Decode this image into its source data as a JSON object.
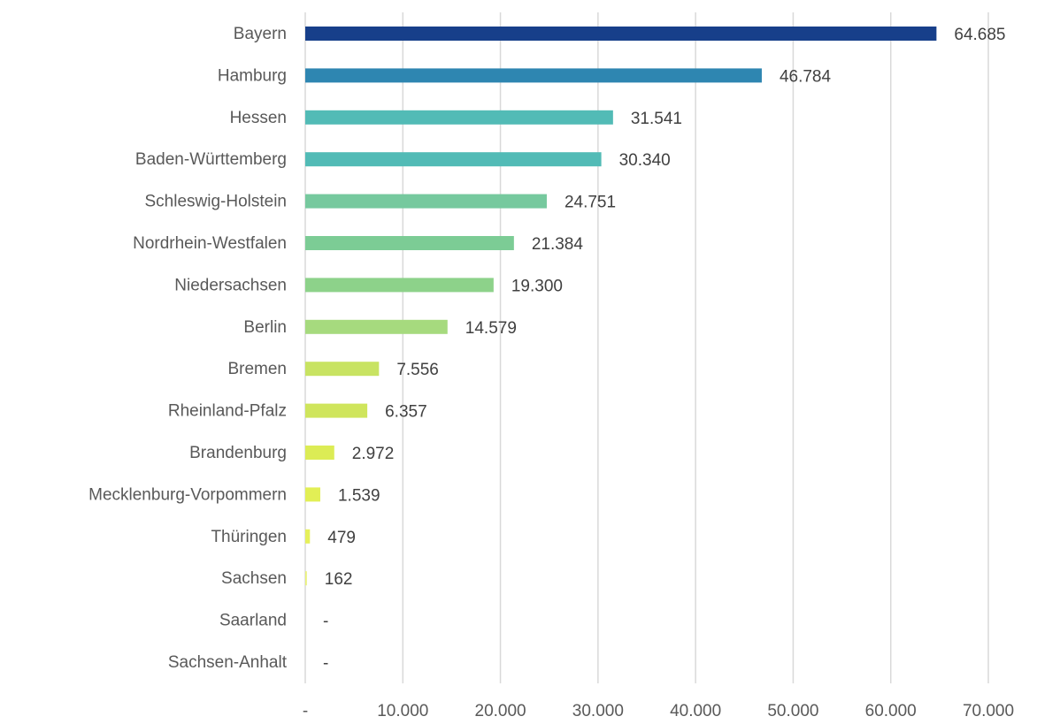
{
  "chart_data": {
    "type": "bar",
    "orientation": "horizontal",
    "title": "",
    "xlabel": "",
    "ylabel": "",
    "xlim": [
      0,
      70000
    ],
    "grid": true,
    "categories": [
      "Bayern",
      "Hamburg",
      "Hessen",
      "Baden-Württemberg",
      "Schleswig-Holstein",
      "Nordrhein-Westfalen",
      "Niedersachsen",
      "Berlin",
      "Bremen",
      "Rheinland-Pfalz",
      "Brandenburg",
      "Mecklenburg-Vorpommern",
      "Thüringen",
      "Sachsen",
      "Saarland",
      "Sachsen-Anhalt"
    ],
    "values": [
      64685,
      46784,
      31541,
      30340,
      24751,
      21384,
      19300,
      14579,
      7556,
      6357,
      2972,
      1539,
      479,
      162,
      0,
      0
    ],
    "value_labels": [
      "64.685",
      "46.784",
      "31.541",
      "30.340",
      "24.751",
      "21.384",
      "19.300",
      "14.579",
      "7.556",
      "6.357",
      "2.972",
      "1.539",
      "479",
      "162",
      "-",
      "-"
    ],
    "bar_colors": [
      "#173f8a",
      "#2e86b1",
      "#52bbb6",
      "#52bbb6",
      "#76c99e",
      "#7ccc95",
      "#8dd28a",
      "#a6da7e",
      "#c8e362",
      "#cfe55c",
      "#dcec55",
      "#e2ef55",
      "#e6f05a",
      "#eaf27a",
      "#ffffff",
      "#ffffff"
    ],
    "ticks": [
      0,
      10000,
      20000,
      30000,
      40000,
      50000,
      60000,
      70000
    ],
    "tick_labels": [
      "-",
      "10.000",
      "20.000",
      "30.000",
      "40.000",
      "50.000",
      "60.000",
      "70.000"
    ]
  }
}
